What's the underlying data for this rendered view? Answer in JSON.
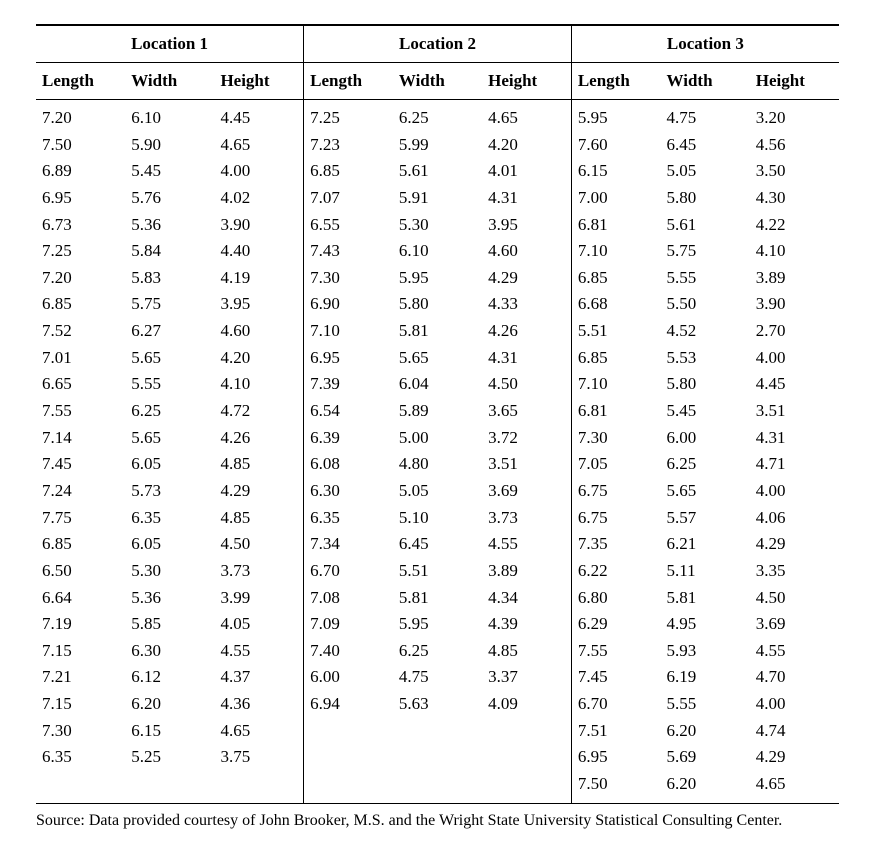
{
  "table": {
    "type": "table",
    "background_color": "#ffffff",
    "text_color": "#000000",
    "rule_color": "#000000",
    "font_family": "Times New Roman",
    "header_fontsize": 17,
    "body_fontsize": 17,
    "groups": [
      {
        "title": "Location 1",
        "columns": [
          "Length",
          "Width",
          "Height"
        ]
      },
      {
        "title": "Location 2",
        "columns": [
          "Length",
          "Width",
          "Height"
        ]
      },
      {
        "title": "Location 3",
        "columns": [
          "Length",
          "Width",
          "Height"
        ]
      }
    ],
    "rows": [
      [
        [
          "7.20",
          "6.10",
          "4.45"
        ],
        [
          "7.25",
          "6.25",
          "4.65"
        ],
        [
          "5.95",
          "4.75",
          "3.20"
        ]
      ],
      [
        [
          "7.50",
          "5.90",
          "4.65"
        ],
        [
          "7.23",
          "5.99",
          "4.20"
        ],
        [
          "7.60",
          "6.45",
          "4.56"
        ]
      ],
      [
        [
          "6.89",
          "5.45",
          "4.00"
        ],
        [
          "6.85",
          "5.61",
          "4.01"
        ],
        [
          "6.15",
          "5.05",
          "3.50"
        ]
      ],
      [
        [
          "6.95",
          "5.76",
          "4.02"
        ],
        [
          "7.07",
          "5.91",
          "4.31"
        ],
        [
          "7.00",
          "5.80",
          "4.30"
        ]
      ],
      [
        [
          "6.73",
          "5.36",
          "3.90"
        ],
        [
          "6.55",
          "5.30",
          "3.95"
        ],
        [
          "6.81",
          "5.61",
          "4.22"
        ]
      ],
      [
        [
          "7.25",
          "5.84",
          "4.40"
        ],
        [
          "7.43",
          "6.10",
          "4.60"
        ],
        [
          "7.10",
          "5.75",
          "4.10"
        ]
      ],
      [
        [
          "7.20",
          "5.83",
          "4.19"
        ],
        [
          "7.30",
          "5.95",
          "4.29"
        ],
        [
          "6.85",
          "5.55",
          "3.89"
        ]
      ],
      [
        [
          "6.85",
          "5.75",
          "3.95"
        ],
        [
          "6.90",
          "5.80",
          "4.33"
        ],
        [
          "6.68",
          "5.50",
          "3.90"
        ]
      ],
      [
        [
          "7.52",
          "6.27",
          "4.60"
        ],
        [
          "7.10",
          "5.81",
          "4.26"
        ],
        [
          "5.51",
          "4.52",
          "2.70"
        ]
      ],
      [
        [
          "7.01",
          "5.65",
          "4.20"
        ],
        [
          "6.95",
          "5.65",
          "4.31"
        ],
        [
          "6.85",
          "5.53",
          "4.00"
        ]
      ],
      [
        [
          "6.65",
          "5.55",
          "4.10"
        ],
        [
          "7.39",
          "6.04",
          "4.50"
        ],
        [
          "7.10",
          "5.80",
          "4.45"
        ]
      ],
      [
        [
          "7.55",
          "6.25",
          "4.72"
        ],
        [
          "6.54",
          "5.89",
          "3.65"
        ],
        [
          "6.81",
          "5.45",
          "3.51"
        ]
      ],
      [
        [
          "7.14",
          "5.65",
          "4.26"
        ],
        [
          "6.39",
          "5.00",
          "3.72"
        ],
        [
          "7.30",
          "6.00",
          "4.31"
        ]
      ],
      [
        [
          "7.45",
          "6.05",
          "4.85"
        ],
        [
          "6.08",
          "4.80",
          "3.51"
        ],
        [
          "7.05",
          "6.25",
          "4.71"
        ]
      ],
      [
        [
          "7.24",
          "5.73",
          "4.29"
        ],
        [
          "6.30",
          "5.05",
          "3.69"
        ],
        [
          "6.75",
          "5.65",
          "4.00"
        ]
      ],
      [
        [
          "7.75",
          "6.35",
          "4.85"
        ],
        [
          "6.35",
          "5.10",
          "3.73"
        ],
        [
          "6.75",
          "5.57",
          "4.06"
        ]
      ],
      [
        [
          "6.85",
          "6.05",
          "4.50"
        ],
        [
          "7.34",
          "6.45",
          "4.55"
        ],
        [
          "7.35",
          "6.21",
          "4.29"
        ]
      ],
      [
        [
          "6.50",
          "5.30",
          "3.73"
        ],
        [
          "6.70",
          "5.51",
          "3.89"
        ],
        [
          "6.22",
          "5.11",
          "3.35"
        ]
      ],
      [
        [
          "6.64",
          "5.36",
          "3.99"
        ],
        [
          "7.08",
          "5.81",
          "4.34"
        ],
        [
          "6.80",
          "5.81",
          "4.50"
        ]
      ],
      [
        [
          "7.19",
          "5.85",
          "4.05"
        ],
        [
          "7.09",
          "5.95",
          "4.39"
        ],
        [
          "6.29",
          "4.95",
          "3.69"
        ]
      ],
      [
        [
          "7.15",
          "6.30",
          "4.55"
        ],
        [
          "7.40",
          "6.25",
          "4.85"
        ],
        [
          "7.55",
          "5.93",
          "4.55"
        ]
      ],
      [
        [
          "7.21",
          "6.12",
          "4.37"
        ],
        [
          "6.00",
          "4.75",
          "3.37"
        ],
        [
          "7.45",
          "6.19",
          "4.70"
        ]
      ],
      [
        [
          "7.15",
          "6.20",
          "4.36"
        ],
        [
          "6.94",
          "5.63",
          "4.09"
        ],
        [
          "6.70",
          "5.55",
          "4.00"
        ]
      ],
      [
        [
          "7.30",
          "6.15",
          "4.65"
        ],
        [
          "",
          "",
          ""
        ],
        [
          "7.51",
          "6.20",
          "4.74"
        ]
      ],
      [
        [
          "6.35",
          "5.25",
          "3.75"
        ],
        [
          "",
          "",
          ""
        ],
        [
          "6.95",
          "5.69",
          "4.29"
        ]
      ],
      [
        [
          "",
          "",
          ""
        ],
        [
          "",
          "",
          ""
        ],
        [
          "7.50",
          "6.20",
          "4.65"
        ]
      ]
    ]
  },
  "source": "Source: Data provided courtesy of John Brooker, M.S. and the Wright State University Statistical Consulting Center."
}
